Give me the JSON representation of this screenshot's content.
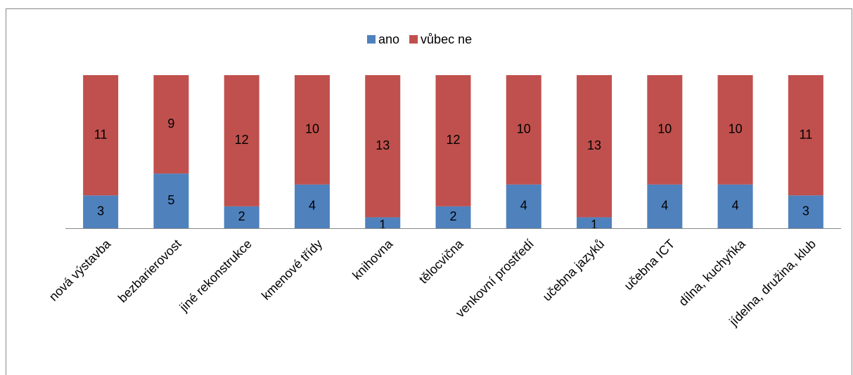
{
  "chart_data": {
    "type": "stacked_bar",
    "categories": [
      "nová výstavba",
      "bezbarierovost",
      "jiné rekonstrukce",
      "kmenové třídy",
      "knihovna",
      "tělocvična",
      "venkovní prostředí",
      "učebna jazyků",
      "učebna ICT",
      "dílna, kuchyňka",
      "jídelna, družina, klub"
    ],
    "series": [
      {
        "name": "ano",
        "color": "#4f81bd",
        "values": [
          3,
          5,
          2,
          4,
          1,
          2,
          4,
          1,
          4,
          4,
          3
        ]
      },
      {
        "name": "vůbec ne",
        "color": "#c0504d",
        "values": [
          11,
          9,
          12,
          10,
          13,
          12,
          10,
          13,
          10,
          10,
          11
        ]
      }
    ],
    "legend": "top"
  }
}
